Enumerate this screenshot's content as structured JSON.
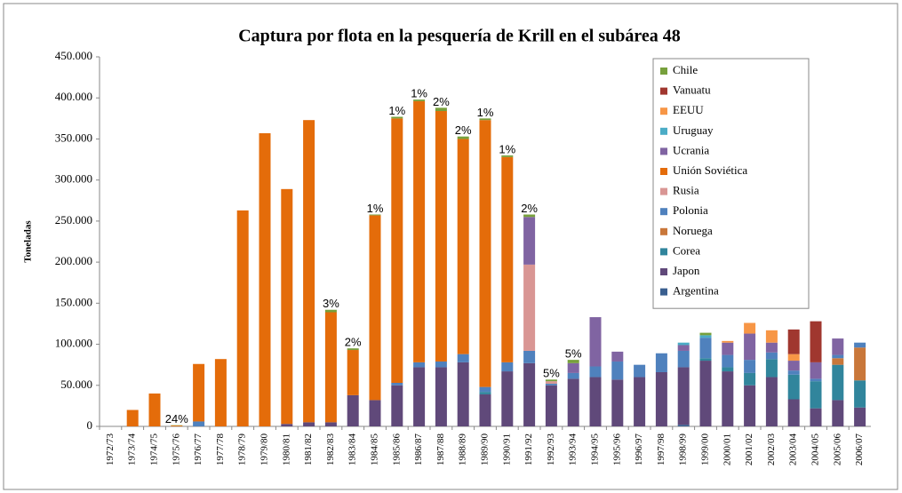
{
  "chart_data": {
    "type": "stacked_bar",
    "title": "Captura por flota en la pesquería de Krill en el subárea 48",
    "y_label": "Toneladas",
    "categories": [
      "1972/73",
      "1973/74",
      "1974/75",
      "1975/76",
      "1976/77",
      "1977/78",
      "1978/79",
      "1979/80",
      "1980/81",
      "1981/82",
      "1982/83",
      "1983/84",
      "1984/85",
      "1985/86",
      "1986/87",
      "1987/88",
      "1988/89",
      "1989/90",
      "1990/91",
      "1991/92",
      "1992/93",
      "1993/94",
      "1994/95",
      "1995/96",
      "1996/97",
      "1997/98",
      "1998/99",
      "1999/00",
      "2000/01",
      "2001/02",
      "2002/03",
      "2003/04",
      "2004/05",
      "2005/06",
      "2006/07"
    ],
    "series": [
      {
        "name": "Argentina",
        "color": "#3a5f8f",
        "values": [
          0,
          0,
          0,
          0,
          0,
          0,
          0,
          0,
          0,
          0,
          0,
          0,
          0,
          0,
          0,
          0,
          0,
          0,
          0,
          0,
          0,
          0,
          0,
          0,
          0,
          0,
          2000,
          0,
          0,
          0,
          0,
          0,
          0,
          0,
          0
        ]
      },
      {
        "name": "Japon",
        "color": "#60497a",
        "values": [
          0,
          0,
          0,
          0,
          0,
          0,
          0,
          0,
          3000,
          5000,
          5000,
          38000,
          32000,
          50000,
          72000,
          72000,
          78000,
          39000,
          67000,
          77000,
          50000,
          58000,
          60000,
          57000,
          60000,
          66000,
          70000,
          80000,
          67000,
          50000,
          60000,
          33000,
          22000,
          32000,
          23000
        ]
      },
      {
        "name": "Corea",
        "color": "#31859c",
        "values": [
          0,
          0,
          0,
          0,
          0,
          0,
          0,
          0,
          0,
          0,
          0,
          0,
          0,
          0,
          0,
          0,
          0,
          3000,
          0,
          0,
          0,
          0,
          0,
          0,
          0,
          0,
          0,
          3000,
          5000,
          15000,
          22000,
          30000,
          33000,
          43000,
          33000
        ]
      },
      {
        "name": "Noruega",
        "color": "#c9773a",
        "values": [
          0,
          0,
          0,
          0,
          0,
          0,
          0,
          0,
          0,
          0,
          0,
          0,
          0,
          0,
          0,
          0,
          0,
          0,
          0,
          0,
          0,
          0,
          0,
          0,
          0,
          0,
          0,
          0,
          0,
          0,
          0,
          0,
          0,
          8000,
          40000
        ]
      },
      {
        "name": "Polonia",
        "color": "#4f81bd",
        "values": [
          0,
          0,
          0,
          0,
          6000,
          0,
          0,
          0,
          0,
          0,
          0,
          0,
          0,
          3000,
          6000,
          7000,
          10000,
          6000,
          11000,
          15000,
          2000,
          7000,
          13000,
          22000,
          15000,
          23000,
          20000,
          25000,
          15000,
          16000,
          8000,
          5000,
          3000,
          4000,
          6000
        ]
      },
      {
        "name": "Rusia",
        "color": "#d99694",
        "values": [
          0,
          0,
          0,
          0,
          0,
          0,
          0,
          0,
          0,
          0,
          0,
          0,
          0,
          0,
          0,
          0,
          0,
          0,
          0,
          105000,
          3000,
          0,
          0,
          0,
          0,
          0,
          0,
          0,
          0,
          0,
          0,
          0,
          0,
          0,
          0
        ]
      },
      {
        "name": "Unión Soviética",
        "color": "#e46c0a",
        "values": [
          0,
          20000,
          40000,
          1000,
          70000,
          82000,
          263000,
          357000,
          286000,
          368000,
          134000,
          55000,
          225000,
          322000,
          318000,
          305000,
          262000,
          325000,
          250000,
          0,
          0,
          0,
          0,
          0,
          0,
          0,
          0,
          0,
          0,
          0,
          0,
          0,
          0,
          0,
          0
        ]
      },
      {
        "name": "Ucrania",
        "color": "#8064a2",
        "values": [
          0,
          0,
          0,
          0,
          0,
          0,
          0,
          0,
          0,
          0,
          0,
          0,
          0,
          0,
          0,
          0,
          0,
          0,
          0,
          58000,
          0,
          12000,
          60000,
          12000,
          0,
          0,
          7000,
          0,
          15000,
          32000,
          12000,
          12000,
          20000,
          20000,
          0
        ]
      },
      {
        "name": "Uruguay",
        "color": "#4bacc6",
        "values": [
          0,
          0,
          0,
          0,
          0,
          0,
          0,
          0,
          0,
          0,
          0,
          0,
          0,
          0,
          0,
          0,
          0,
          0,
          0,
          0,
          0,
          0,
          0,
          0,
          0,
          0,
          3000,
          3000,
          0,
          0,
          0,
          0,
          0,
          0,
          0
        ]
      },
      {
        "name": "EEUU",
        "color": "#f79646",
        "values": [
          0,
          0,
          0,
          0,
          0,
          0,
          0,
          0,
          0,
          0,
          0,
          0,
          0,
          0,
          0,
          0,
          0,
          0,
          0,
          0,
          0,
          0,
          0,
          0,
          0,
          0,
          0,
          0,
          2000,
          13000,
          15000,
          8000,
          0,
          0,
          0
        ]
      },
      {
        "name": "Vanuatu",
        "color": "#a0372f",
        "values": [
          0,
          0,
          0,
          0,
          0,
          0,
          0,
          0,
          0,
          0,
          0,
          0,
          0,
          0,
          0,
          0,
          0,
          0,
          0,
          0,
          0,
          0,
          0,
          0,
          0,
          0,
          0,
          0,
          0,
          0,
          0,
          30000,
          50000,
          0,
          0
        ]
      },
      {
        "name": "Chile",
        "color": "#77a03c",
        "values": [
          0,
          0,
          0,
          400,
          0,
          0,
          0,
          0,
          0,
          0,
          3000,
          2000,
          1000,
          2000,
          2000,
          4000,
          3000,
          2000,
          2000,
          3000,
          2000,
          4000,
          0,
          0,
          0,
          0,
          0,
          3000,
          0,
          0,
          0,
          0,
          0,
          0,
          0
        ]
      }
    ],
    "annotations": [
      {
        "category": "1975/76",
        "text": "24%"
      },
      {
        "category": "1982/83",
        "text": "3%"
      },
      {
        "category": "1983/84",
        "text": "2%"
      },
      {
        "category": "1984/85",
        "text": "1%"
      },
      {
        "category": "1985/86",
        "text": "1%"
      },
      {
        "category": "1986/87",
        "text": "1%"
      },
      {
        "category": "1987/88",
        "text": "2%"
      },
      {
        "category": "1988/89",
        "text": "2%"
      },
      {
        "category": "1989/90",
        "text": "1%"
      },
      {
        "category": "1990/91",
        "text": "1%"
      },
      {
        "category": "1991/92",
        "text": "2%"
      },
      {
        "category": "1992/93",
        "text": "5%"
      },
      {
        "category": "1993/94",
        "text": "5%"
      }
    ],
    "ylim": [
      0,
      450000
    ],
    "yticks": [
      0,
      {
        "value": 50000,
        "label": "50.000"
      },
      {
        "value": 100000,
        "label": "100.000"
      },
      {
        "value": 150000,
        "label": "150.000"
      },
      {
        "value": 200000,
        "label": "200.000"
      },
      {
        "value": 250000,
        "label": "250.000"
      },
      {
        "value": 300000,
        "label": "300.000"
      },
      {
        "value": 350000,
        "label": "350.000"
      },
      {
        "value": 400000,
        "label": "400.000"
      },
      {
        "value": 450000,
        "label": "450.000"
      }
    ],
    "grid": false,
    "legend": "right"
  }
}
